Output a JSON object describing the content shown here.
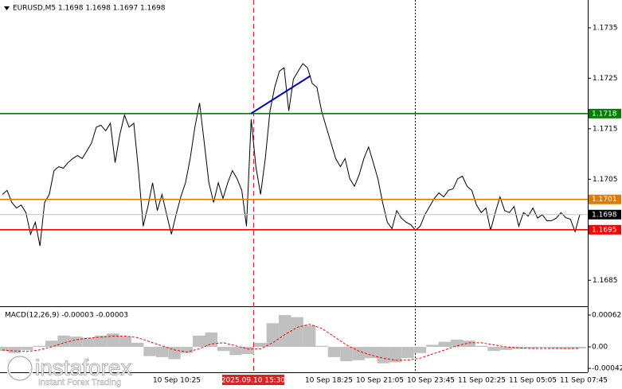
{
  "chart_data": [
    {
      "type": "line",
      "title": "EURUSD,M5  1.1698 1.1698 1.1697 1.1698",
      "series": [
        {
          "color": "#000000",
          "values": [
            1.1702,
            1.17028,
            1.17004,
            1.16993,
            1.16999,
            1.16984,
            1.16941,
            1.16965,
            1.16918,
            1.17004,
            1.1702,
            1.17067,
            1.17075,
            1.17072,
            1.17083,
            1.17091,
            1.17097,
            1.17091,
            1.17106,
            1.17122,
            1.17153,
            1.17157,
            1.17146,
            1.17161,
            1.17083,
            1.17138,
            1.17177,
            1.17153,
            1.17161,
            1.17067,
            1.16957,
            1.16996,
            1.17043,
            1.16988,
            1.1702,
            1.1698,
            1.16941,
            1.1698,
            1.17015,
            1.17043,
            1.17091,
            1.17153,
            1.17201,
            1.17122,
            1.17043,
            1.17004,
            1.17043,
            1.17012,
            1.17043,
            1.17067,
            1.17051,
            1.17028,
            1.16957,
            1.17169,
            1.17075,
            1.1702,
            1.17091,
            1.17185,
            1.17232,
            1.17264,
            1.17271,
            1.17185,
            1.17248,
            1.17264,
            1.17279,
            1.17271,
            1.1724,
            1.17232,
            1.17185,
            1.17153,
            1.17122,
            1.17091,
            1.17075,
            1.17091,
            1.17051,
            1.17036,
            1.17059,
            1.17091,
            1.17114,
            1.17083,
            1.17051,
            1.17004,
            1.16965,
            1.16952,
            1.16988,
            1.16973,
            1.16965,
            1.1696,
            1.16949,
            1.16957,
            1.1698,
            1.16996,
            1.17012,
            1.17023,
            1.17015,
            1.17028,
            1.17031,
            1.17051,
            1.17056,
            1.17036,
            1.17028,
            1.16999,
            1.16984,
            1.16993,
            1.16949,
            1.16984,
            1.17015,
            1.16988,
            1.16984,
            1.16996,
            1.16957,
            1.16984,
            1.16977,
            1.16993,
            1.16973,
            1.1698,
            1.16968,
            1.16968,
            1.16973,
            1.16984,
            1.16974,
            1.16971,
            1.16946,
            1.1698
          ]
        }
      ],
      "ylim": [
        1.168,
        1.17405
      ],
      "yticks": [
        1.1685,
        1.1705,
        1.1715,
        1.1725,
        1.1735
      ],
      "levels": [
        {
          "value": 1.1718,
          "color": "#008000"
        },
        {
          "value": 1.1701,
          "color": "#e07b00"
        },
        {
          "value": 1.1698,
          "color": "#c0c0c0",
          "label_color": "#000000"
        },
        {
          "value": 1.1695,
          "color": "#ff0000"
        }
      ],
      "trendline": {
        "values": [
          1.1718,
          1.17255
        ],
        "color": "#0000cc"
      },
      "x_labels": [
        "10 Sep 10:25",
        "10 Sep 18:25",
        "10 Sep 21:05",
        "10 Sep 23:45",
        "11 Sep 02:25",
        "11 Sep 05:05",
        "11 Sep 07:45"
      ],
      "crosshair_label": "2025.09.10 15:30"
    },
    {
      "type": "macd",
      "title": "MACD(12,26,9) -0.00003 -0.00003",
      "series": [
        {
          "color": "#c0c0c0",
          "values": [
            -8e-05,
            -0.00012,
            -6e-05,
            2e-05,
            0.00012,
            0.00022,
            0.0002,
            0.00018,
            0.00022,
            0.00026,
            0.0002,
            8e-05,
            -0.00018,
            -0.0002,
            -0.00024,
            -0.00012,
            0.00022,
            0.00028,
            -8e-05,
            -0.00016,
            -0.00014,
            8e-05,
            0.00046,
            0.00062,
            0.00058,
            0.00042,
            2e-05,
            -0.0002,
            -0.00028,
            -0.00026,
            -0.00022,
            -0.00032,
            -0.0003,
            -0.00022,
            -0.00012,
            4e-05,
            0.0001,
            0.00014,
            0.00012,
            2e-05,
            -8e-05,
            -6e-05,
            -4e-05,
            -3e-05,
            -2e-05,
            -3e-05,
            -4e-05,
            -3e-05
          ]
        },
        {
          "color": "#ff0000",
          "values": [
            -6e-05,
            -8e-05,
            -9e-05,
            -6e-05,
            0.0,
            8e-05,
            0.00014,
            0.00017,
            0.00019,
            0.00021,
            0.00021,
            0.00018,
            0.0001,
            2e-05,
            -6e-05,
            -0.0001,
            -4e-05,
            6e-05,
            8e-05,
            2e-05,
            -4e-05,
            -4e-05,
            8e-05,
            0.00024,
            0.00038,
            0.00044,
            0.00036,
            0.0002,
            4e-05,
            -8e-05,
            -0.00016,
            -0.00022,
            -0.00026,
            -0.00026,
            -0.00022,
            -0.00014,
            -6e-05,
            2e-05,
            8e-05,
            8e-05,
            4e-05,
            0.0,
            -2e-05,
            -3e-05,
            -3e-05,
            -3e-05,
            -3e-05,
            -3e-05
          ]
        }
      ],
      "ylim": [
        -0.00048,
        0.00076
      ],
      "yticks": [
        0.00062,
        {
          "value": 0,
          "label": "0.00"
        },
        -0.00042
      ]
    }
  ],
  "watermark": {
    "brand": "instaforex",
    "tagline": "Instant Forex Trading"
  }
}
